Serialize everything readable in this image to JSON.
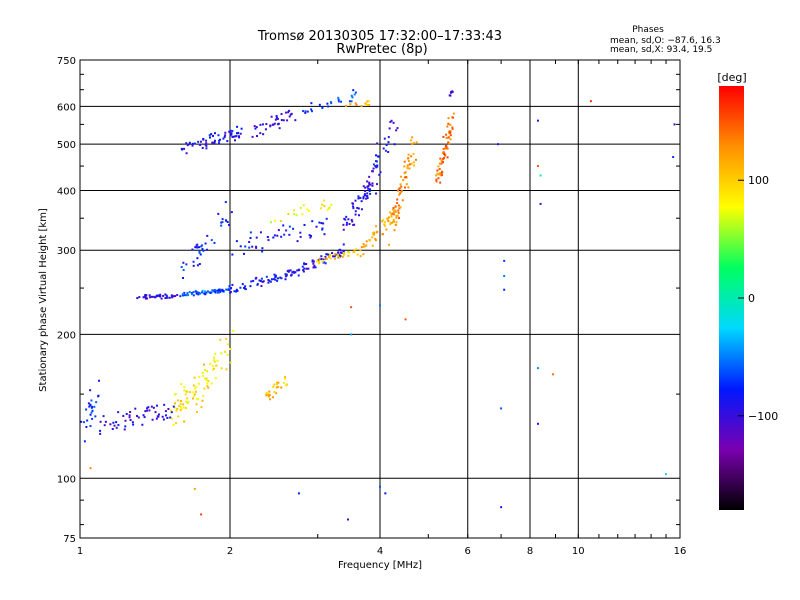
{
  "header": {
    "title_line1": "Tromsø 20130305 17:32:00–17:33:43",
    "title_line2": "RwPretec (8p)",
    "stats_heading": "Phases",
    "stats_o": "mean, sd,O: −87.6, 16.3",
    "stats_x": "mean, sd,X: 93.4, 19.5"
  },
  "chart_data": {
    "type": "scatter",
    "title": "Tromsø 20130305 17:32:00–17:33:43",
    "subtitle": "RwPretec (8p)",
    "xlabel": "Frequency [MHz]",
    "ylabel": "Stationary phase Virtual Height [km]",
    "xscale": "log",
    "yscale": "log",
    "xlim": [
      1,
      16
    ],
    "ylim": [
      75,
      750
    ],
    "xticks": [
      1,
      2,
      4,
      6,
      8,
      10,
      16
    ],
    "xtick_labels": [
      "1",
      "2",
      "4",
      "6",
      "8",
      "10",
      "16"
    ],
    "yticks": [
      75,
      100,
      200,
      300,
      400,
      500,
      600,
      750
    ],
    "ytick_labels": [
      "75",
      "100",
      "200",
      "300",
      "400",
      "500",
      "600",
      "750"
    ],
    "grid": true,
    "colorbar": {
      "label": "[deg]",
      "range": [
        -180,
        180
      ],
      "ticks": [
        100,
        0,
        -100
      ],
      "tick_labels": [
        "100",
        "0",
        "−100"
      ],
      "colormap": "rainbow",
      "stops": [
        "#000000",
        "#7a00b0",
        "#0018ff",
        "#00d8ff",
        "#00ff60",
        "#ffff00",
        "#ff9000",
        "#ff0000"
      ]
    },
    "series": [
      {
        "name": "O",
        "description_from_legend": "Phases mean, sd,O",
        "mean": -87.6,
        "sd": 16.3
      },
      {
        "name": "X",
        "description_from_legend": "Phases mean, sd,X",
        "mean": 93.4,
        "sd": 19.5
      }
    ],
    "traces": [
      {
        "x": [
          1.28,
          1.6
        ],
        "y": [
          240,
          240
        ],
        "phase": -95,
        "n": 40,
        "spread": 0.02
      },
      {
        "x": [
          1.6,
          2.0
        ],
        "y": [
          242,
          248
        ],
        "phase": -60,
        "n": 60,
        "spread": 0.015
      },
      {
        "x": [
          2.0,
          2.7
        ],
        "y": [
          248,
          270
        ],
        "phase": -85,
        "n": 60,
        "spread": 0.03
      },
      {
        "x": [
          2.7,
          3.4
        ],
        "y": [
          270,
          300
        ],
        "phase": -90,
        "n": 50,
        "spread": 0.04
      },
      {
        "x": [
          3.0,
          3.6
        ],
        "y": [
          285,
          300
        ],
        "phase": 105,
        "n": 30,
        "spread": 0.02
      },
      {
        "x": [
          3.6,
          4.3
        ],
        "y": [
          300,
          360
        ],
        "phase": 115,
        "n": 45,
        "spread": 0.04
      },
      {
        "x": [
          4.2,
          4.7
        ],
        "y": [
          330,
          500
        ],
        "phase": 130,
        "n": 70,
        "spread": 0.05
      },
      {
        "x": [
          5.2,
          5.6
        ],
        "y": [
          420,
          560
        ],
        "phase": 140,
        "n": 65,
        "spread": 0.05
      },
      {
        "x": [
          1.6,
          2.1
        ],
        "y": [
          490,
          530
        ],
        "phase": -90,
        "n": 60,
        "spread": 0.05
      },
      {
        "x": [
          2.2,
          2.7
        ],
        "y": [
          520,
          580
        ],
        "phase": -100,
        "n": 35,
        "spread": 0.05
      },
      {
        "x": [
          2.8,
          3.6
        ],
        "y": [
          580,
          640
        ],
        "phase": -70,
        "n": 25,
        "spread": 0.04
      },
      {
        "x": [
          3.4,
          3.8
        ],
        "y": [
          600,
          610
        ],
        "phase": 110,
        "n": 12,
        "spread": 0.02
      },
      {
        "x": [
          3.4,
          3.9
        ],
        "y": [
          330,
          420
        ],
        "phase": -95,
        "n": 55,
        "spread": 0.07
      },
      {
        "x": [
          3.8,
          4.3
        ],
        "y": [
          420,
          560
        ],
        "phase": -90,
        "n": 30,
        "spread": 0.07
      },
      {
        "x": [
          1.6,
          2.0
        ],
        "y": [
          270,
          360
        ],
        "phase": -80,
        "n": 40,
        "spread": 0.08
      },
      {
        "x": [
          2.0,
          3.1
        ],
        "y": [
          300,
          340
        ],
        "phase": -85,
        "n": 45,
        "spread": 0.08
      },
      {
        "x": [
          2.4,
          3.2
        ],
        "y": [
          340,
          380
        ],
        "phase": 80,
        "n": 20,
        "spread": 0.06
      },
      {
        "x": [
          1.55,
          2.0
        ],
        "y": [
          135,
          185
        ],
        "phase": 90,
        "n": 90,
        "spread": 0.12
      },
      {
        "x": [
          1.02,
          1.08
        ],
        "y": [
          125,
          155
        ],
        "phase": -75,
        "n": 25,
        "spread": 0.08
      },
      {
        "x": [
          1.1,
          1.55
        ],
        "y": [
          130,
          140
        ],
        "phase": -95,
        "n": 55,
        "spread": 0.09
      },
      {
        "x": [
          2.35,
          2.6
        ],
        "y": [
          148,
          160
        ],
        "phase": 105,
        "n": 25,
        "spread": 0.04
      },
      {
        "x": [
          5.5,
          5.6
        ],
        "y": [
          630,
          645
        ],
        "phase": -100,
        "n": 8,
        "spread": 0.01
      }
    ],
    "scatter_points": [
      {
        "x": 7.1,
        "y": 285,
        "phase": -70
      },
      {
        "x": 7.1,
        "y": 265,
        "phase": -50
      },
      {
        "x": 7.1,
        "y": 248,
        "phase": -75
      },
      {
        "x": 7.0,
        "y": 140,
        "phase": -60
      },
      {
        "x": 7.0,
        "y": 87,
        "phase": -90
      },
      {
        "x": 8.3,
        "y": 170,
        "phase": -45
      },
      {
        "x": 8.3,
        "y": 130,
        "phase": -95
      },
      {
        "x": 8.4,
        "y": 375,
        "phase": -100
      },
      {
        "x": 8.4,
        "y": 430,
        "phase": 0
      },
      {
        "x": 8.3,
        "y": 450,
        "phase": 150
      },
      {
        "x": 8.3,
        "y": 560,
        "phase": -100
      },
      {
        "x": 8.9,
        "y": 165,
        "phase": 140
      },
      {
        "x": 10.6,
        "y": 615,
        "phase": 165
      },
      {
        "x": 15.6,
        "y": 550,
        "phase": -90
      },
      {
        "x": 15.5,
        "y": 470,
        "phase": -70
      },
      {
        "x": 15.0,
        "y": 102,
        "phase": -20
      },
      {
        "x": 3.5,
        "y": 228,
        "phase": 150
      },
      {
        "x": 3.5,
        "y": 200,
        "phase": -40
      },
      {
        "x": 3.45,
        "y": 82,
        "phase": -110
      },
      {
        "x": 4.0,
        "y": 230,
        "phase": -50
      },
      {
        "x": 4.5,
        "y": 215,
        "phase": 150
      },
      {
        "x": 4.0,
        "y": 96,
        "phase": -60
      },
      {
        "x": 4.1,
        "y": 93,
        "phase": -85
      },
      {
        "x": 2.75,
        "y": 93,
        "phase": -75
      },
      {
        "x": 1.75,
        "y": 84,
        "phase": 155
      },
      {
        "x": 1.7,
        "y": 95,
        "phase": 120
      },
      {
        "x": 1.05,
        "y": 105,
        "phase": 130
      },
      {
        "x": 6.9,
        "y": 500,
        "phase": -90
      }
    ]
  }
}
